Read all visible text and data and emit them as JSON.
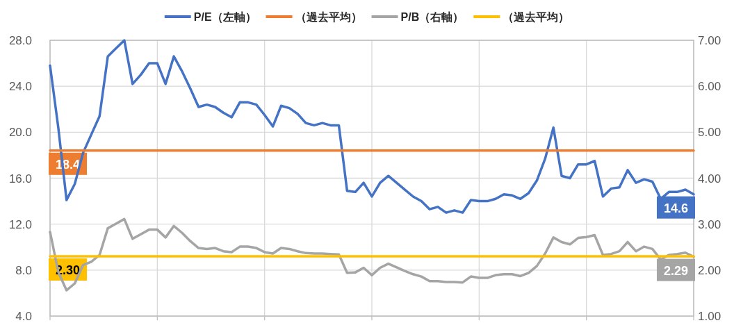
{
  "chart_data": {
    "type": "line",
    "categories": [
      null,
      null,
      null,
      null,
      null,
      null,
      null,
      null,
      null,
      null,
      null,
      null,
      null,
      null,
      null,
      null,
      null,
      null,
      null,
      null,
      null,
      null,
      null,
      null,
      null,
      null,
      null,
      null,
      null,
      null,
      null,
      null,
      null,
      null,
      null,
      null,
      null,
      null,
      null,
      null,
      null,
      null,
      null,
      null,
      null,
      null,
      null,
      null,
      null,
      null,
      null,
      null,
      null,
      null,
      null,
      null,
      null,
      null,
      null,
      null,
      null,
      null,
      null,
      null,
      null,
      null,
      null,
      null,
      null,
      null,
      null,
      null,
      null,
      null,
      null,
      null,
      null,
      null,
      null
    ],
    "series": [
      {
        "name": "P/E（左軸）",
        "color": "#4472c4",
        "values": [
          25.8,
          20.4,
          14.1,
          15.5,
          18.2,
          19.8,
          21.4,
          26.6,
          27.3,
          28.0,
          24.2,
          25.0,
          26.0,
          26.0,
          24.2,
          26.6,
          25.3,
          23.8,
          22.2,
          22.4,
          22.2,
          21.7,
          21.3,
          22.6,
          22.6,
          22.4,
          21.5,
          20.5,
          22.3,
          22.1,
          21.6,
          20.8,
          20.6,
          20.8,
          20.6,
          20.6,
          14.9,
          14.8,
          15.6,
          14.4,
          15.6,
          16.2,
          15.6,
          15.0,
          14.4,
          14.0,
          13.3,
          13.5,
          13.0,
          13.2,
          13.0,
          14.1,
          14.0,
          14.0,
          14.2,
          14.6,
          14.5,
          14.2,
          14.7,
          15.8,
          17.7,
          20.4,
          16.2,
          16.0,
          17.2,
          17.2,
          17.5,
          14.4,
          15.1,
          15.2,
          16.7,
          15.6,
          15.9,
          15.7,
          14.2,
          14.8,
          14.8,
          15.0,
          14.6
        ],
        "value_labels": [
          null,
          null,
          null,
          null,
          null,
          null,
          null,
          null,
          null,
          null,
          null,
          null,
          null,
          null,
          null,
          null,
          null,
          null,
          null,
          null,
          null,
          null,
          null,
          null,
          null,
          null,
          null,
          null,
          null,
          null,
          null,
          null,
          null,
          null,
          null,
          null,
          null,
          null,
          null,
          null,
          null,
          null,
          null,
          null,
          null,
          null,
          null,
          null,
          null,
          null,
          null,
          null,
          null,
          null,
          null,
          null,
          null,
          null,
          null,
          null,
          null,
          null,
          null,
          null,
          null,
          null,
          null,
          null,
          null,
          null,
          null,
          null,
          null,
          null,
          null,
          null,
          null,
          null,
          "14.6"
        ]
      },
      {
        "name": "（過去平均）",
        "color": "#ed7d31",
        "values": [
          18.4,
          18.4,
          18.4,
          18.4,
          18.4,
          18.4,
          18.4,
          18.4,
          18.4,
          18.4,
          18.4,
          18.4,
          18.4,
          18.4,
          18.4,
          18.4,
          18.4,
          18.4,
          18.4,
          18.4,
          18.4,
          18.4,
          18.4,
          18.4,
          18.4,
          18.4,
          18.4,
          18.4,
          18.4,
          18.4,
          18.4,
          18.4,
          18.4,
          18.4,
          18.4,
          18.4,
          18.4,
          18.4,
          18.4,
          18.4,
          18.4,
          18.4,
          18.4,
          18.4,
          18.4,
          18.4,
          18.4,
          18.4,
          18.4,
          18.4,
          18.4,
          18.4,
          18.4,
          18.4,
          18.4,
          18.4,
          18.4,
          18.4,
          18.4,
          18.4,
          18.4,
          18.4,
          18.4,
          18.4,
          18.4,
          18.4,
          18.4,
          18.4,
          18.4,
          18.4,
          18.4,
          18.4,
          18.4,
          18.4,
          18.4,
          18.4,
          18.4,
          18.4,
          18.4
        ],
        "value_labels": [
          "18.4",
          null,
          null,
          null,
          null,
          null,
          null,
          null,
          null,
          null,
          null,
          null,
          null,
          null,
          null,
          null,
          null,
          null,
          null,
          null,
          null,
          null,
          null,
          null,
          null,
          null,
          null,
          null,
          null,
          null,
          null,
          null,
          null,
          null,
          null,
          null,
          null,
          null,
          null,
          null,
          null,
          null,
          null,
          null,
          null,
          null,
          null,
          null,
          null,
          null,
          null,
          null,
          null,
          null,
          null,
          null,
          null,
          null,
          null,
          null,
          null,
          null,
          null,
          null,
          null,
          null,
          null,
          null,
          null,
          null,
          null,
          null,
          null,
          null,
          null,
          null,
          null,
          null,
          null
        ]
      },
      {
        "name": "P/B（右軸）",
        "color": "#a5a5a5",
        "axis": "y2",
        "values": [
          2.83,
          1.96,
          1.56,
          1.71,
          2.11,
          2.18,
          2.33,
          2.91,
          3.01,
          3.11,
          2.68,
          2.78,
          2.88,
          2.88,
          2.71,
          2.96,
          2.81,
          2.63,
          2.48,
          2.46,
          2.48,
          2.41,
          2.39,
          2.51,
          2.51,
          2.48,
          2.39,
          2.36,
          2.48,
          2.46,
          2.41,
          2.37,
          2.36,
          2.36,
          2.35,
          2.34,
          1.94,
          1.95,
          2.05,
          1.89,
          2.05,
          2.14,
          2.06,
          1.98,
          1.91,
          1.86,
          1.76,
          1.76,
          1.74,
          1.74,
          1.73,
          1.86,
          1.83,
          1.83,
          1.89,
          1.91,
          1.91,
          1.87,
          1.94,
          2.09,
          2.36,
          2.71,
          2.61,
          2.56,
          2.7,
          2.72,
          2.76,
          2.33,
          2.35,
          2.41,
          2.61,
          2.41,
          2.51,
          2.46,
          2.23,
          2.33,
          2.35,
          2.38,
          2.29
        ],
        "value_labels": [
          null,
          null,
          null,
          null,
          null,
          null,
          null,
          null,
          null,
          null,
          null,
          null,
          null,
          null,
          null,
          null,
          null,
          null,
          null,
          null,
          null,
          null,
          null,
          null,
          null,
          null,
          null,
          null,
          null,
          null,
          null,
          null,
          null,
          null,
          null,
          null,
          null,
          null,
          null,
          null,
          null,
          null,
          null,
          null,
          null,
          null,
          null,
          null,
          null,
          null,
          null,
          null,
          null,
          null,
          null,
          null,
          null,
          null,
          null,
          null,
          null,
          null,
          null,
          null,
          null,
          null,
          null,
          null,
          null,
          null,
          null,
          null,
          null,
          null,
          null,
          null,
          null,
          null,
          "2.29"
        ]
      },
      {
        "name": "（過去平均）",
        "color": "#ffc000",
        "axis": "y2",
        "values": [
          2.3,
          2.3,
          2.3,
          2.3,
          2.3,
          2.3,
          2.3,
          2.3,
          2.3,
          2.3,
          2.3,
          2.3,
          2.3,
          2.3,
          2.3,
          2.3,
          2.3,
          2.3,
          2.3,
          2.3,
          2.3,
          2.3,
          2.3,
          2.3,
          2.3,
          2.3,
          2.3,
          2.3,
          2.3,
          2.3,
          2.3,
          2.3,
          2.3,
          2.3,
          2.3,
          2.3,
          2.3,
          2.3,
          2.3,
          2.3,
          2.3,
          2.3,
          2.3,
          2.3,
          2.3,
          2.3,
          2.3,
          2.3,
          2.3,
          2.3,
          2.3,
          2.3,
          2.3,
          2.3,
          2.3,
          2.3,
          2.3,
          2.3,
          2.3,
          2.3,
          2.3,
          2.3,
          2.3,
          2.3,
          2.3,
          2.3,
          2.3,
          2.3,
          2.3,
          2.3,
          2.3,
          2.3,
          2.3,
          2.3,
          2.3,
          2.3,
          2.3,
          2.3,
          2.3
        ],
        "value_labels": [
          "2.30",
          null,
          null,
          null,
          null,
          null,
          null,
          null,
          null,
          null,
          null,
          null,
          null,
          null,
          null,
          null,
          null,
          null,
          null,
          null,
          null,
          null,
          null,
          null,
          null,
          null,
          null,
          null,
          null,
          null,
          null,
          null,
          null,
          null,
          null,
          null,
          null,
          null,
          null,
          null,
          null,
          null,
          null,
          null,
          null,
          null,
          null,
          null,
          null,
          null,
          null,
          null,
          null,
          null,
          null,
          null,
          null,
          null,
          null,
          null,
          null,
          null,
          null,
          null,
          null,
          null,
          null,
          null,
          null,
          null,
          null,
          null,
          null,
          null,
          null,
          null,
          null,
          null,
          null
        ]
      }
    ],
    "ylim": [
      4,
      28
    ],
    "yticks": [
      {
        "value": 4,
        "label": "4.0"
      },
      {
        "value": 8,
        "label": "8.0"
      },
      {
        "value": 12,
        "label": "12.0"
      },
      {
        "value": 16,
        "label": "16.0"
      },
      {
        "value": 20,
        "label": "20.0"
      },
      {
        "value": 24,
        "label": "24.0"
      },
      {
        "value": 28,
        "label": "28.0"
      }
    ],
    "y2lim": [
      1,
      7
    ],
    "y2ticks": [
      {
        "value": 1,
        "label": "1.00"
      },
      {
        "value": 2,
        "label": "2.00"
      },
      {
        "value": 3,
        "label": "3.00"
      },
      {
        "value": 4,
        "label": "4.00"
      },
      {
        "value": 5,
        "label": "5.00"
      },
      {
        "value": 6,
        "label": "6.00"
      },
      {
        "value": 7,
        "label": "7.00"
      }
    ],
    "grid": true,
    "legend": "top",
    "marker": "none",
    "line_style": "solid"
  }
}
